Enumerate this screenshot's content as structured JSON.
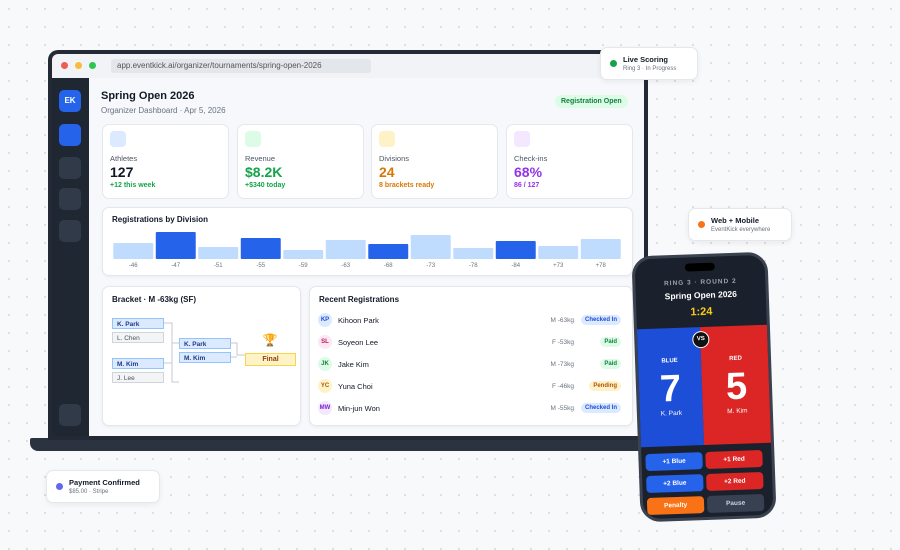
{
  "browser": {
    "url": "app.eventkick.ai/organizer/tournaments/spring-open-2026"
  },
  "sidebar": {
    "logo": "EK"
  },
  "header": {
    "title": "Spring Open 2026",
    "subtitle": "Organizer Dashboard · Apr 5, 2026",
    "badge": "Registration Open"
  },
  "stats": [
    {
      "label": "Athletes",
      "value": "127",
      "sub": "+12 this week"
    },
    {
      "label": "Revenue",
      "value": "$8.2K",
      "sub": "+$340 today"
    },
    {
      "label": "Divisions",
      "value": "24",
      "sub": "8 brackets ready"
    },
    {
      "label": "Check-ins",
      "value": "68%",
      "sub": "86 / 127"
    }
  ],
  "chart_data": {
    "type": "bar",
    "title": "Registrations by Division",
    "categories": [
      "-46",
      "-47",
      "-51",
      "-55",
      "-59",
      "-63",
      "-68",
      "-73",
      "-78",
      "-84",
      "+73",
      "+78"
    ],
    "values": [
      16,
      27,
      12,
      21,
      9,
      19,
      15,
      24,
      11,
      18,
      13,
      20
    ],
    "colors": [
      "#bfdbfe",
      "#2563eb",
      "#bfdbfe",
      "#2563eb",
      "#bfdbfe",
      "#bfdbfe",
      "#2563eb",
      "#bfdbfe",
      "#bfdbfe",
      "#2563eb",
      "#bfdbfe",
      "#bfdbfe"
    ]
  },
  "bracket": {
    "title": "Bracket · M -63kg (SF)",
    "round1": [
      "K. Park",
      "L. Chen",
      "M. Kim",
      "J. Lee"
    ],
    "semis": [
      "K. Park",
      "M. Kim"
    ],
    "final": "Final"
  },
  "registrations": {
    "title": "Recent Registrations",
    "rows": [
      {
        "initials": "KP",
        "name": "Kihoon Park",
        "division": "M -63kg",
        "status": "Checked In"
      },
      {
        "initials": "SL",
        "name": "Soyeon Lee",
        "division": "F -53kg",
        "status": "Paid"
      },
      {
        "initials": "JK",
        "name": "Jake Kim",
        "division": "M -73kg",
        "status": "Paid"
      },
      {
        "initials": "YC",
        "name": "Yuna Choi",
        "division": "F -46kg",
        "status": "Pending"
      },
      {
        "initials": "MW",
        "name": "Min-jun Won",
        "division": "M -55kg",
        "status": "Checked In"
      }
    ]
  },
  "phone": {
    "ring": "RING 3 · ROUND 2",
    "event": "Spring Open 2026",
    "clock": "1:24",
    "vs": "VS",
    "blue": {
      "side": "BLUE",
      "score": "7",
      "name": "K. Park"
    },
    "red": {
      "side": "RED",
      "score": "5",
      "name": "M. Kim"
    },
    "buttons": [
      "+1 Blue",
      "+1 Red",
      "+2 Blue",
      "+2 Red",
      "Penalty",
      "Pause"
    ]
  },
  "floats": [
    {
      "title": "Live Scoring",
      "sub": "Ring 3 · In Progress"
    },
    {
      "title": "Web + Mobile",
      "sub": "EventKick everywhere"
    },
    {
      "title": "Payment Confirmed",
      "sub": "$85.00 · Stripe"
    }
  ]
}
